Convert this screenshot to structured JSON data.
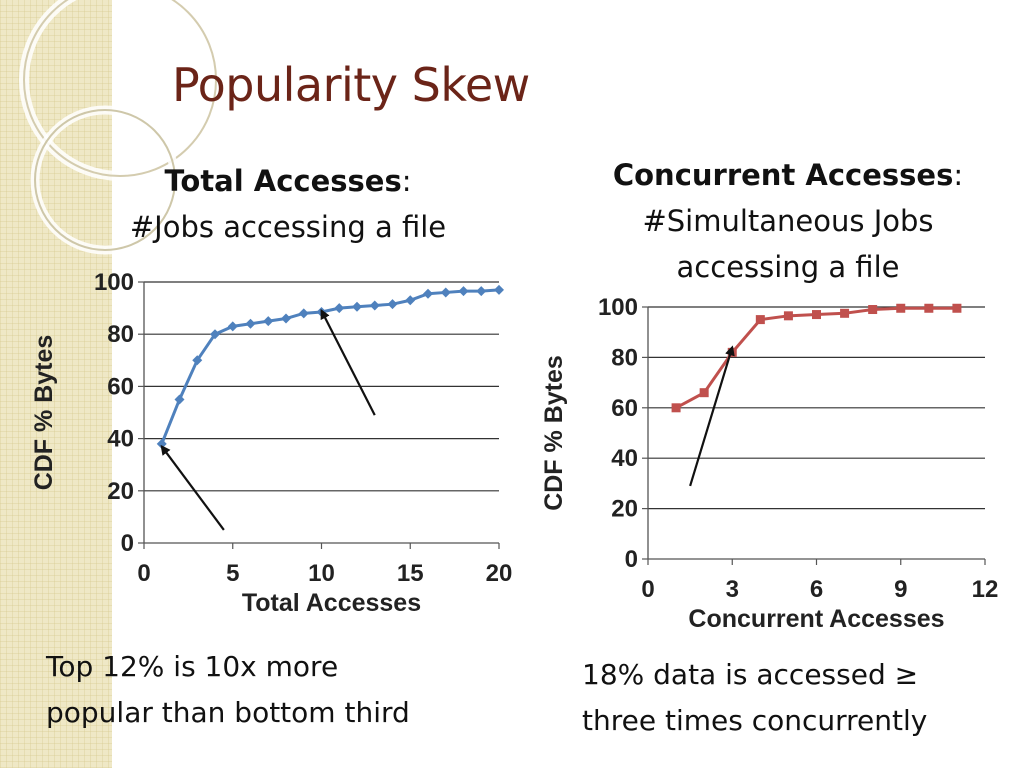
{
  "slide": {
    "title": "Popularity Skew",
    "left_heading": {
      "bold": "Total Accesses",
      "rest": ":",
      "line2": "#Jobs accessing a file"
    },
    "right_heading": {
      "bold": "Concurrent Accesses",
      "rest": ":",
      "line2": "#Simultaneous Jobs",
      "line3": "accessing a file"
    },
    "left_caption": {
      "line1": "Top 12% is 10x more",
      "line2": "popular than bottom third"
    },
    "right_caption": {
      "line1": "18% data is accessed ≥",
      "line2": "three times concurrently"
    }
  },
  "chart_data": [
    {
      "type": "line",
      "xlabel": "Total Accesses",
      "ylabel": "CDF % Bytes",
      "xlim": [
        0,
        20
      ],
      "ylim": [
        0,
        100
      ],
      "xticks": [
        0,
        5,
        10,
        15,
        20
      ],
      "yticks": [
        0,
        20,
        40,
        60,
        80,
        100
      ],
      "grid": true,
      "series": [
        {
          "color": "#4f81bd",
          "marker": "diamond",
          "x": [
            1,
            2,
            3,
            4,
            5,
            6,
            7,
            8,
            9,
            10,
            11,
            12,
            13,
            14,
            15,
            16,
            17,
            18,
            19,
            20
          ],
          "y": [
            38,
            55,
            70,
            80,
            83,
            84,
            85,
            86,
            88,
            88.5,
            90,
            90.5,
            91,
            91.5,
            93,
            95.5,
            96,
            96.5,
            96.5,
            97
          ]
        }
      ],
      "annotations": [
        {
          "type": "arrow",
          "from": [
            4.5,
            5
          ],
          "to": [
            1,
            37
          ]
        },
        {
          "type": "arrow",
          "from": [
            13,
            49
          ],
          "to": [
            10,
            89
          ]
        }
      ]
    },
    {
      "type": "line",
      "xlabel": "Concurrent Accesses",
      "ylabel": "CDF % Bytes",
      "xlim": [
        0,
        12
      ],
      "ylim": [
        0,
        100
      ],
      "xticks": [
        0,
        3,
        6,
        9,
        12
      ],
      "yticks": [
        0,
        20,
        40,
        60,
        80,
        100
      ],
      "grid": true,
      "series": [
        {
          "color": "#c0504d",
          "marker": "square",
          "x": [
            1,
            2,
            3,
            4,
            5,
            6,
            7,
            8,
            9,
            10,
            11
          ],
          "y": [
            60,
            66,
            82,
            95,
            96.5,
            97,
            97.5,
            99,
            99.5,
            99.5,
            99.5
          ]
        }
      ],
      "annotations": [
        {
          "type": "arrow",
          "from": [
            1.5,
            29
          ],
          "to": [
            3,
            84
          ]
        }
      ]
    }
  ]
}
